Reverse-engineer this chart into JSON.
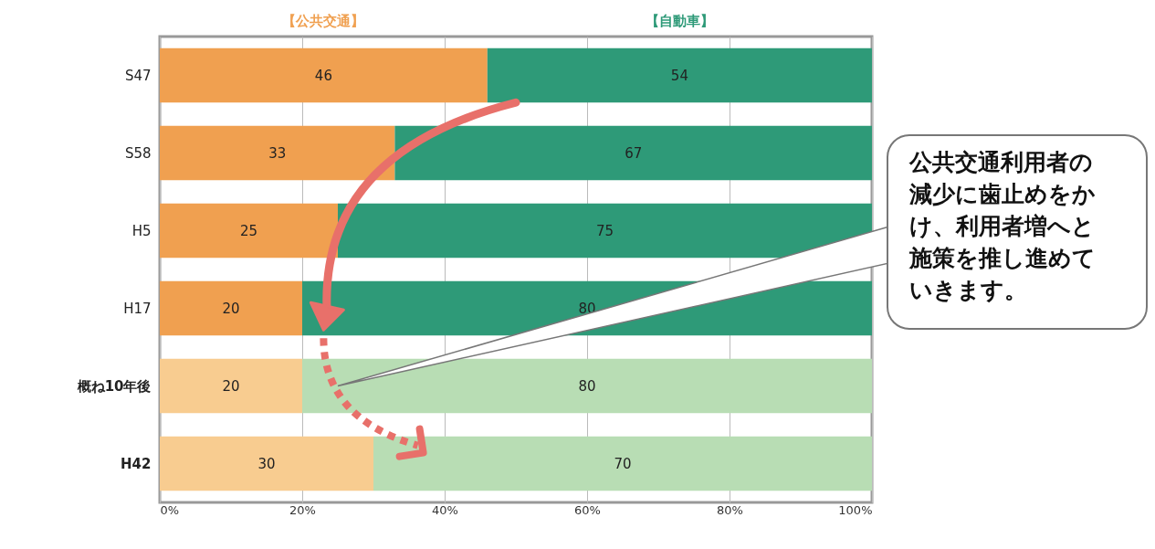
{
  "chart_data": {
    "type": "bar",
    "orientation": "horizontal",
    "stacked": true,
    "data_labels": true,
    "legend": "top",
    "grid": "x",
    "categories": [
      "S47",
      "S58",
      "H5",
      "H17",
      "概ね10年後",
      "H42"
    ],
    "series": [
      {
        "name": "【公共交通】",
        "color": "#f0a050",
        "colors": [
          "#f0a050",
          "#f0a050",
          "#f0a050",
          "#f0a050",
          "#f8cc90",
          "#f8cc90"
        ],
        "values": [
          46,
          33,
          25,
          20,
          20,
          30
        ]
      },
      {
        "name": "【自動車】",
        "color": "#2e9a78",
        "colors": [
          "#2e9a78",
          "#2e9a78",
          "#2e9a78",
          "#2e9a78",
          "#b8ddb4",
          "#b8ddb4"
        ],
        "values": [
          54,
          67,
          75,
          80,
          80,
          70
        ]
      }
    ],
    "xlim": [
      0,
      100
    ],
    "xticks": [
      {
        "value": 0,
        "label": "0%"
      },
      {
        "value": 20,
        "label": "20%"
      },
      {
        "value": 40,
        "label": "40%"
      },
      {
        "value": 60,
        "label": "60%"
      },
      {
        "value": 80,
        "label": "80%"
      },
      {
        "value": 100,
        "label": "100%"
      }
    ],
    "annotations": [
      "公共交通利用者の減少に歯止めをかけ、利用者増へと施策を推し進めていきます。"
    ]
  }
}
